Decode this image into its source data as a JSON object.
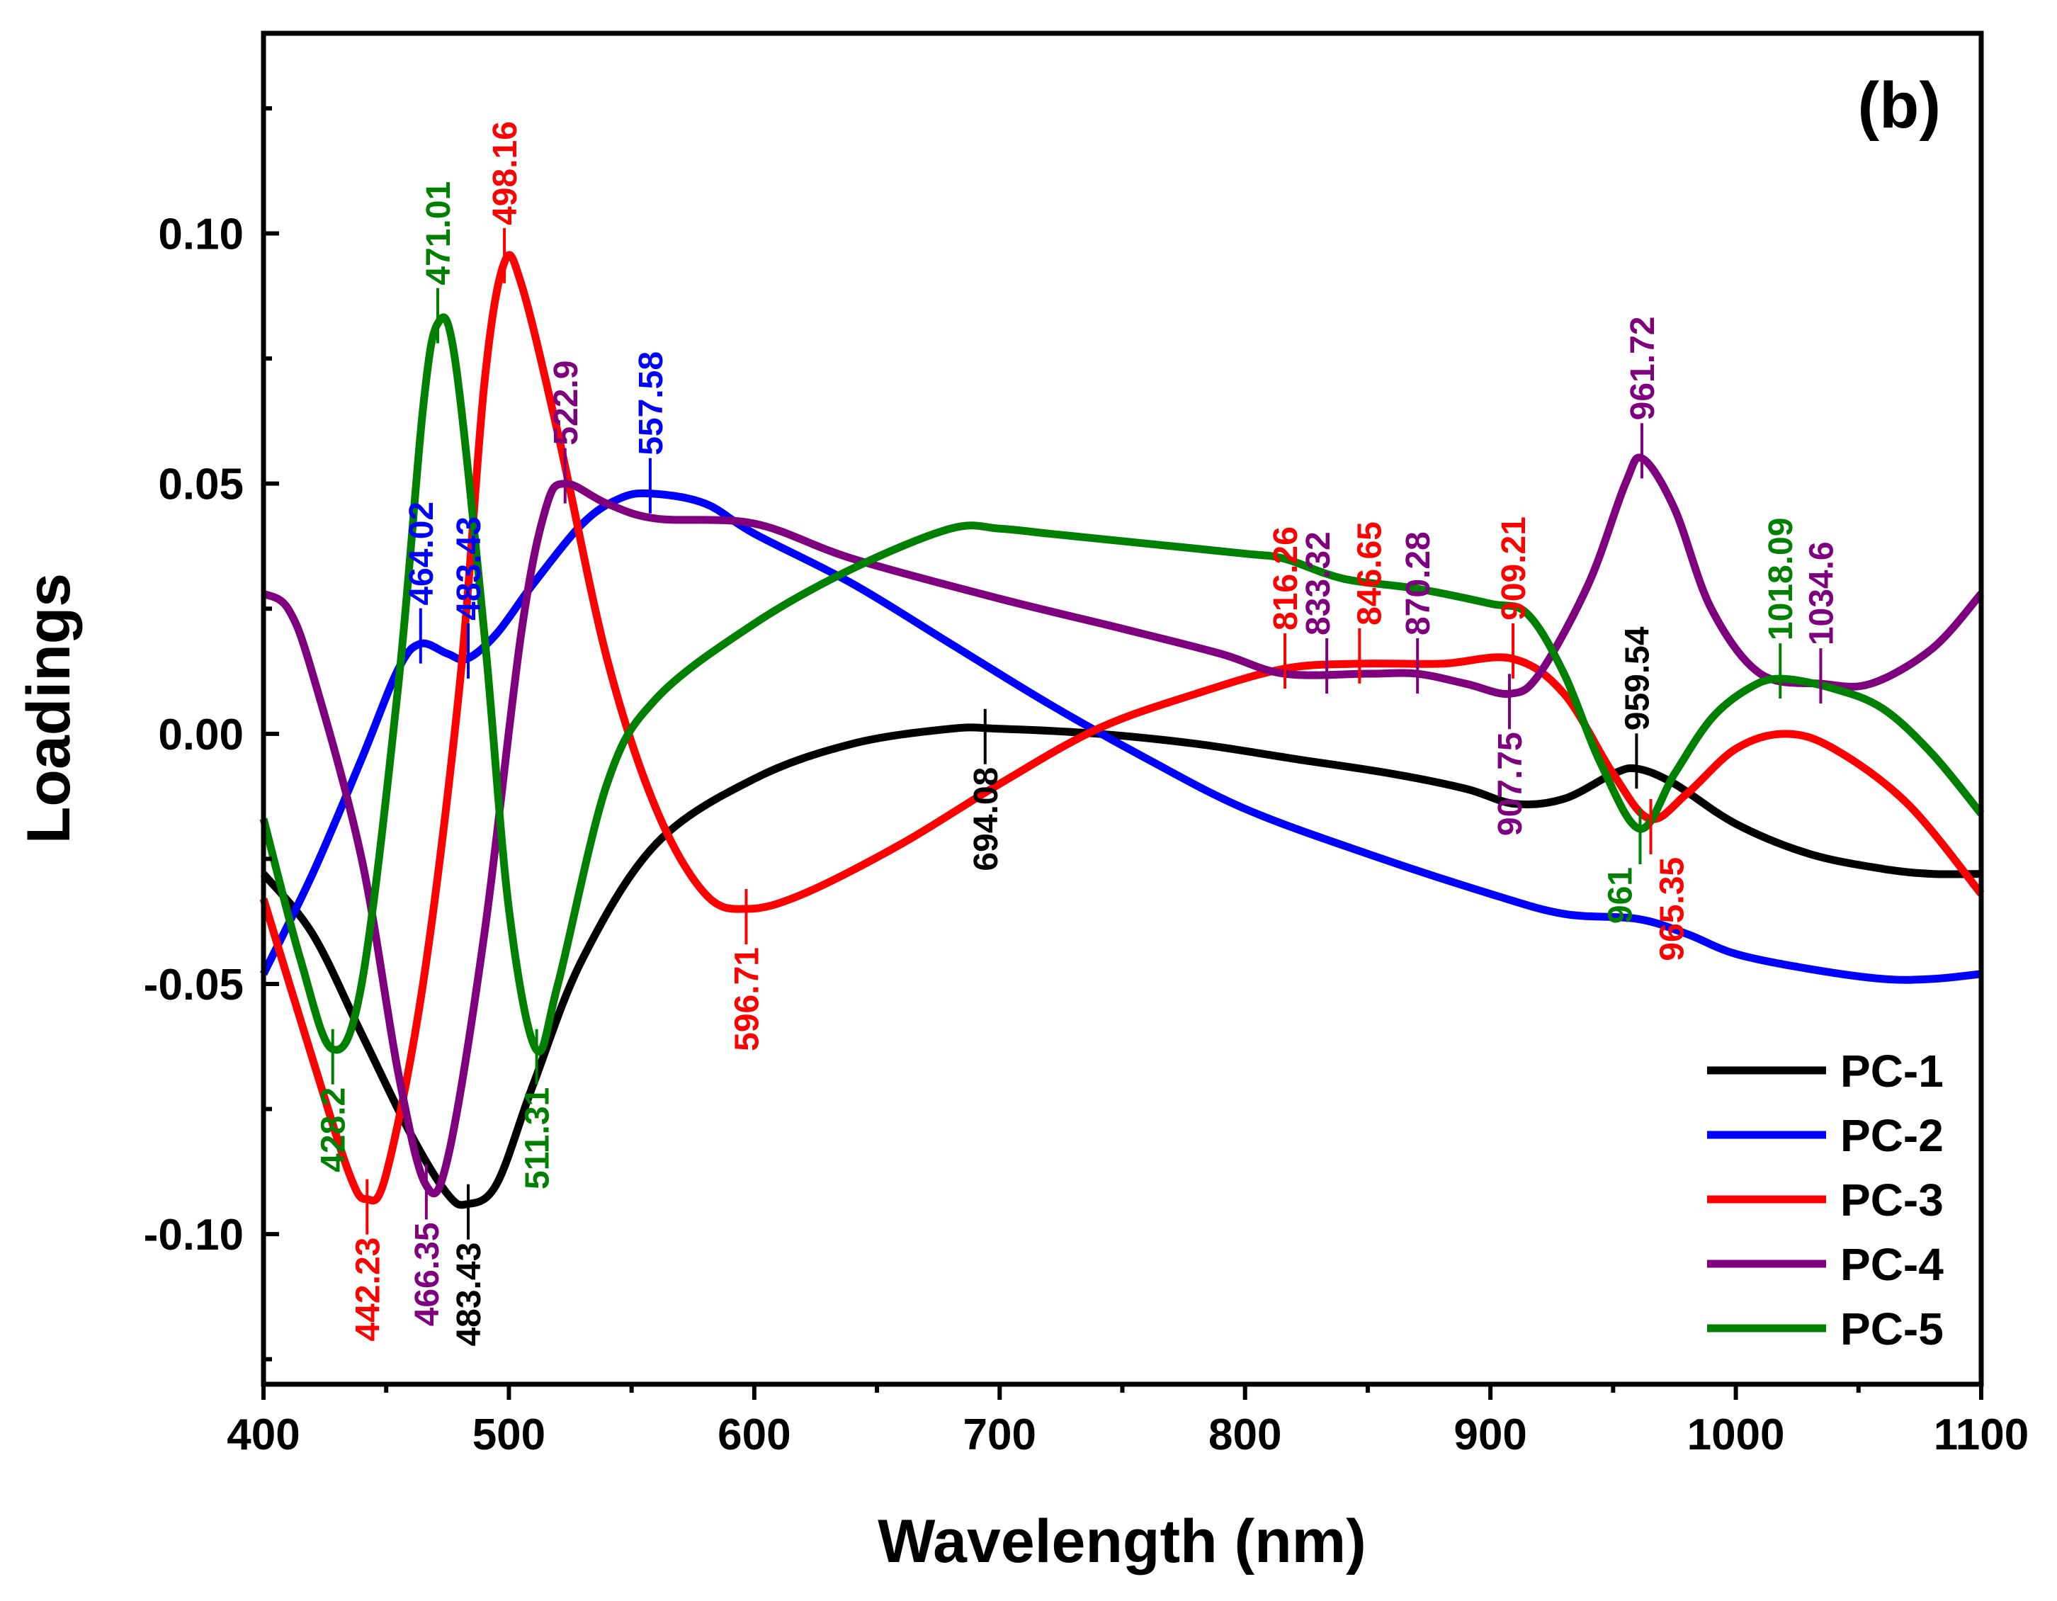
{
  "chart_data": {
    "type": "line",
    "panel_label": "(b)",
    "xlabel": "Wavelength (nm)",
    "ylabel": "Loadings",
    "xlim": [
      400,
      1100
    ],
    "ylim": [
      -0.13,
      0.14
    ],
    "xticks": [
      400,
      500,
      600,
      700,
      800,
      900,
      1000,
      1100
    ],
    "xtick_labels": [
      "400",
      "500",
      "600",
      "700",
      "800",
      "900",
      "1000",
      "1100"
    ],
    "yticks": [
      -0.1,
      -0.05,
      0.0,
      0.05,
      0.1
    ],
    "ytick_labels": [
      "-0.10",
      "-0.05",
      "0.00",
      "0.05",
      "0.10"
    ],
    "grid": false,
    "legend_position": "bottom-right",
    "series": [
      {
        "name": "PC-1",
        "color": "#000000",
        "points": [
          [
            400,
            -0.028
          ],
          [
            420,
            -0.04
          ],
          [
            440,
            -0.06
          ],
          [
            460,
            -0.08
          ],
          [
            475,
            -0.092
          ],
          [
            483,
            -0.094
          ],
          [
            495,
            -0.09
          ],
          [
            510,
            -0.07
          ],
          [
            530,
            -0.045
          ],
          [
            560,
            -0.022
          ],
          [
            600,
            -0.009
          ],
          [
            640,
            -0.002
          ],
          [
            680,
            0.001
          ],
          [
            700,
            0.001
          ],
          [
            740,
            0.0
          ],
          [
            780,
            -0.002
          ],
          [
            820,
            -0.005
          ],
          [
            860,
            -0.008
          ],
          [
            890,
            -0.011
          ],
          [
            910,
            -0.014
          ],
          [
            930,
            -0.013
          ],
          [
            950,
            -0.008
          ],
          [
            960,
            -0.007
          ],
          [
            975,
            -0.01
          ],
          [
            1000,
            -0.018
          ],
          [
            1030,
            -0.024
          ],
          [
            1060,
            -0.027
          ],
          [
            1080,
            -0.028
          ],
          [
            1100,
            -0.028
          ]
        ]
      },
      {
        "name": "PC-2",
        "color": "#0000ff",
        "points": [
          [
            400,
            -0.048
          ],
          [
            420,
            -0.028
          ],
          [
            440,
            -0.005
          ],
          [
            455,
            0.013
          ],
          [
            464,
            0.018
          ],
          [
            475,
            0.016
          ],
          [
            483,
            0.015
          ],
          [
            495,
            0.02
          ],
          [
            510,
            0.03
          ],
          [
            530,
            0.042
          ],
          [
            545,
            0.047
          ],
          [
            558,
            0.048
          ],
          [
            580,
            0.046
          ],
          [
            600,
            0.04
          ],
          [
            640,
            0.03
          ],
          [
            680,
            0.018
          ],
          [
            720,
            0.006
          ],
          [
            760,
            -0.005
          ],
          [
            800,
            -0.015
          ],
          [
            850,
            -0.024
          ],
          [
            900,
            -0.032
          ],
          [
            930,
            -0.036
          ],
          [
            960,
            -0.037
          ],
          [
            980,
            -0.04
          ],
          [
            1000,
            -0.044
          ],
          [
            1030,
            -0.047
          ],
          [
            1060,
            -0.049
          ],
          [
            1080,
            -0.049
          ],
          [
            1100,
            -0.048
          ]
        ]
      },
      {
        "name": "PC-3",
        "color": "#ff0000",
        "points": [
          [
            400,
            -0.033
          ],
          [
            420,
            -0.065
          ],
          [
            435,
            -0.088
          ],
          [
            442,
            -0.093
          ],
          [
            450,
            -0.088
          ],
          [
            465,
            -0.05
          ],
          [
            480,
            0.01
          ],
          [
            490,
            0.07
          ],
          [
            498,
            0.094
          ],
          [
            505,
            0.09
          ],
          [
            520,
            0.06
          ],
          [
            540,
            0.015
          ],
          [
            560,
            -0.015
          ],
          [
            580,
            -0.032
          ],
          [
            597,
            -0.035
          ],
          [
            620,
            -0.032
          ],
          [
            660,
            -0.022
          ],
          [
            700,
            -0.01
          ],
          [
            740,
            0.001
          ],
          [
            780,
            0.008
          ],
          [
            816,
            0.013
          ],
          [
            846,
            0.014
          ],
          [
            880,
            0.014
          ],
          [
            909,
            0.015
          ],
          [
            930,
            0.008
          ],
          [
            950,
            -0.008
          ],
          [
            965,
            -0.017
          ],
          [
            980,
            -0.012
          ],
          [
            1000,
            -0.003
          ],
          [
            1020,
            0.0
          ],
          [
            1040,
            -0.003
          ],
          [
            1070,
            -0.014
          ],
          [
            1100,
            -0.032
          ]
        ]
      },
      {
        "name": "PC-4",
        "color": "#7f007f",
        "points": [
          [
            400,
            0.028
          ],
          [
            410,
            0.025
          ],
          [
            420,
            0.012
          ],
          [
            440,
            -0.025
          ],
          [
            455,
            -0.068
          ],
          [
            466,
            -0.09
          ],
          [
            475,
            -0.085
          ],
          [
            490,
            -0.04
          ],
          [
            505,
            0.02
          ],
          [
            515,
            0.045
          ],
          [
            523,
            0.05
          ],
          [
            540,
            0.046
          ],
          [
            560,
            0.043
          ],
          [
            600,
            0.042
          ],
          [
            640,
            0.035
          ],
          [
            700,
            0.027
          ],
          [
            750,
            0.021
          ],
          [
            790,
            0.016
          ],
          [
            816,
            0.012
          ],
          [
            850,
            0.012
          ],
          [
            870,
            0.012
          ],
          [
            890,
            0.01
          ],
          [
            908,
            0.008
          ],
          [
            920,
            0.012
          ],
          [
            940,
            0.03
          ],
          [
            955,
            0.05
          ],
          [
            962,
            0.055
          ],
          [
            975,
            0.045
          ],
          [
            990,
            0.025
          ],
          [
            1010,
            0.012
          ],
          [
            1035,
            0.01
          ],
          [
            1055,
            0.01
          ],
          [
            1080,
            0.017
          ],
          [
            1100,
            0.028
          ]
        ]
      },
      {
        "name": "PC-5",
        "color": "#008000",
        "points": [
          [
            400,
            -0.017
          ],
          [
            415,
            -0.045
          ],
          [
            428,
            -0.063
          ],
          [
            440,
            -0.05
          ],
          [
            455,
            0.01
          ],
          [
            465,
            0.065
          ],
          [
            471,
            0.082
          ],
          [
            478,
            0.075
          ],
          [
            490,
            0.02
          ],
          [
            500,
            -0.035
          ],
          [
            511,
            -0.063
          ],
          [
            520,
            -0.05
          ],
          [
            540,
            -0.01
          ],
          [
            560,
            0.007
          ],
          [
            600,
            0.022
          ],
          [
            640,
            0.033
          ],
          [
            680,
            0.041
          ],
          [
            700,
            0.041
          ],
          [
            720,
            0.04
          ],
          [
            760,
            0.038
          ],
          [
            800,
            0.036
          ],
          [
            816,
            0.035
          ],
          [
            840,
            0.031
          ],
          [
            870,
            0.029
          ],
          [
            900,
            0.026
          ],
          [
            915,
            0.024
          ],
          [
            930,
            0.012
          ],
          [
            945,
            -0.006
          ],
          [
            961,
            -0.019
          ],
          [
            975,
            -0.008
          ],
          [
            990,
            0.003
          ],
          [
            1005,
            0.009
          ],
          [
            1018,
            0.011
          ],
          [
            1040,
            0.009
          ],
          [
            1060,
            0.005
          ],
          [
            1080,
            -0.004
          ],
          [
            1100,
            -0.016
          ]
        ]
      }
    ],
    "annotations": [
      {
        "text": "471.01",
        "x": 471.01,
        "y": 0.082,
        "color": "#008000",
        "dir": "up"
      },
      {
        "text": "498.16",
        "x": 498.16,
        "y": 0.094,
        "color": "#ff0000",
        "dir": "up"
      },
      {
        "text": "522.9",
        "x": 522.9,
        "y": 0.05,
        "color": "#7f007f",
        "dir": "up"
      },
      {
        "text": "557.58",
        "x": 557.58,
        "y": 0.048,
        "color": "#0000ff",
        "dir": "up"
      },
      {
        "text": "464.02",
        "x": 464.02,
        "y": 0.018,
        "color": "#0000ff",
        "dir": "up"
      },
      {
        "text": "483.43",
        "x": 483.43,
        "y": 0.015,
        "color": "#0000ff",
        "dir": "up"
      },
      {
        "text": "816.26",
        "x": 816.26,
        "y": 0.013,
        "color": "#ff0000",
        "dir": "up"
      },
      {
        "text": "833.32",
        "x": 833.32,
        "y": 0.012,
        "color": "#7f007f",
        "dir": "up"
      },
      {
        "text": "846.65",
        "x": 846.65,
        "y": 0.014,
        "color": "#ff0000",
        "dir": "up"
      },
      {
        "text": "870.28",
        "x": 870.28,
        "y": 0.012,
        "color": "#7f007f",
        "dir": "up"
      },
      {
        "text": "909.21",
        "x": 909.21,
        "y": 0.015,
        "color": "#ff0000",
        "dir": "up"
      },
      {
        "text": "961.72",
        "x": 961.72,
        "y": 0.055,
        "color": "#7f007f",
        "dir": "up"
      },
      {
        "text": "959.54",
        "x": 959.54,
        "y": -0.007,
        "color": "#000000",
        "dir": "up"
      },
      {
        "text": "1018.09",
        "x": 1018.09,
        "y": 0.011,
        "color": "#008000",
        "dir": "up"
      },
      {
        "text": "1034.6",
        "x": 1034.6,
        "y": 0.01,
        "color": "#7f007f",
        "dir": "up"
      },
      {
        "text": "428.2",
        "x": 428.2,
        "y": -0.063,
        "color": "#008000",
        "dir": "down"
      },
      {
        "text": "442.23",
        "x": 442.23,
        "y": -0.093,
        "color": "#ff0000",
        "dir": "down"
      },
      {
        "text": "466.35",
        "x": 466.35,
        "y": -0.09,
        "color": "#7f007f",
        "dir": "down"
      },
      {
        "text": "483.43",
        "x": 483.43,
        "y": -0.094,
        "color": "#000000",
        "dir": "down"
      },
      {
        "text": "511.31",
        "x": 511.31,
        "y": -0.063,
        "color": "#008000",
        "dir": "down"
      },
      {
        "text": "596.71",
        "x": 596.71,
        "y": -0.035,
        "color": "#ff0000",
        "dir": "down"
      },
      {
        "text": "694.08",
        "x": 694.08,
        "y": 0.001,
        "color": "#000000",
        "dir": "down"
      },
      {
        "text": "907.75",
        "x": 907.75,
        "y": 0.008,
        "color": "#7f007f",
        "dir": "down"
      },
      {
        "text": "961",
        "x": 961,
        "y": -0.019,
        "color": "#008000",
        "dir": "down"
      },
      {
        "text": "965.35",
        "x": 965.35,
        "y": -0.017,
        "color": "#ff0000",
        "dir": "down"
      }
    ]
  }
}
